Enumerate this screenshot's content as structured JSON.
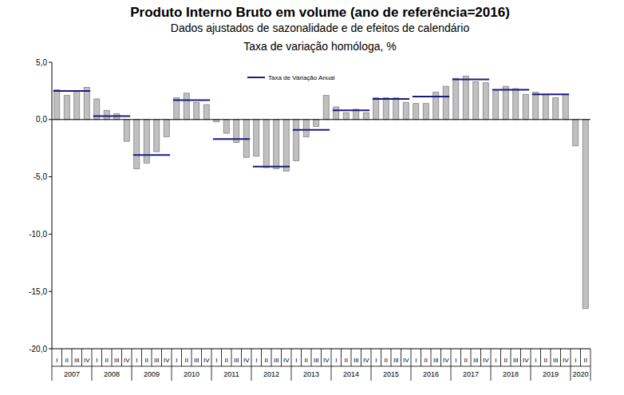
{
  "chart_data": {
    "type": "bar",
    "title": "Produto Interno Bruto em volume (ano de referência=2016)",
    "subtitle": "Dados ajustados de sazonalidade e de efeitos de calendário",
    "y_label": "Taxa de variação homóloga, %",
    "categories": [
      "I",
      "II",
      "III",
      "IV",
      "I",
      "II",
      "III",
      "IV",
      "I",
      "II",
      "III",
      "IV",
      "I",
      "II",
      "III",
      "IV",
      "I",
      "II",
      "III",
      "IV",
      "I",
      "II",
      "III",
      "IV",
      "I",
      "II",
      "III",
      "IV",
      "I",
      "II",
      "III",
      "IV",
      "I",
      "II",
      "III",
      "IV",
      "I",
      "II",
      "III",
      "IV",
      "I",
      "II",
      "III",
      "IV",
      "I",
      "II",
      "III",
      "IV",
      "I",
      "II",
      "III",
      "IV",
      "I",
      "II"
    ],
    "year_labels": [
      "2007",
      "2008",
      "2009",
      "2010",
      "2011",
      "2012",
      "2013",
      "2014",
      "2015",
      "2016",
      "2017",
      "2018",
      "2019",
      "2020"
    ],
    "series": [
      {
        "type": "bar",
        "color": "#c0c0c0",
        "values": [
          2.6,
          2.1,
          2.5,
          2.8,
          1.8,
          0.8,
          0.5,
          -1.9,
          -4.3,
          -3.8,
          -2.8,
          -1.5,
          1.9,
          2.3,
          1.5,
          1.3,
          -0.2,
          -1.2,
          -2.0,
          -3.3,
          -3.2,
          -4.2,
          -4.3,
          -4.5,
          -3.6,
          -1.5,
          -0.6,
          2.1,
          1.1,
          0.6,
          0.9,
          0.6,
          1.9,
          1.9,
          1.9,
          1.5,
          1.4,
          1.4,
          2.4,
          2.9,
          3.6,
          3.8,
          3.3,
          3.2,
          2.6,
          2.9,
          2.7,
          2.2,
          2.4,
          2.2,
          1.9,
          2.2,
          -2.3,
          -16.5
        ]
      }
    ],
    "annual_series": {
      "name": "Taxa de Variação Anual",
      "type": "line",
      "color": "#1a1a80",
      "line_style": "solid",
      "values": [
        2.5,
        0.3,
        -3.1,
        1.7,
        -1.7,
        -4.1,
        -0.9,
        0.8,
        1.8,
        2.0,
        3.5,
        2.6,
        2.2
      ]
    },
    "ylim": [
      -20,
      5
    ],
    "yticks": [
      {
        "value": -20,
        "label": "-20,0"
      },
      {
        "value": -15,
        "label": "-15,0"
      },
      {
        "value": -10,
        "label": "-10,0"
      },
      {
        "value": -5,
        "label": "-5,0"
      },
      {
        "value": 0,
        "label": "0,0"
      },
      {
        "value": 5,
        "label": "5,0"
      }
    ],
    "grid": false,
    "legend": "top"
  }
}
